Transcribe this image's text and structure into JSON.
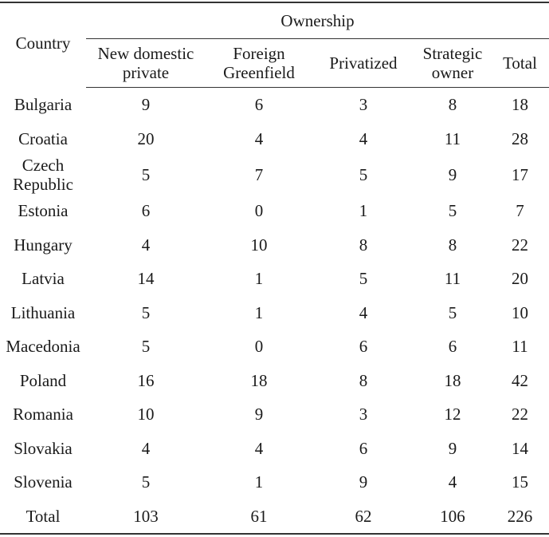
{
  "header": {
    "country": "Country",
    "group": "Ownership",
    "columns": [
      "New domestic\nprivate",
      "Foreign\nGreenfield",
      "Privatized",
      "Strategic\nowner",
      "Total"
    ]
  },
  "rows": [
    {
      "country": "Bulgaria",
      "values": [
        "9",
        "6",
        "3",
        "8",
        "18"
      ]
    },
    {
      "country": "Croatia",
      "values": [
        "20",
        "4",
        "4",
        "11",
        "28"
      ]
    },
    {
      "country": "Czech\nRepublic",
      "values": [
        "5",
        "7",
        "5",
        "9",
        "17"
      ]
    },
    {
      "country": "Estonia",
      "values": [
        "6",
        "0",
        "1",
        "5",
        "7"
      ]
    },
    {
      "country": "Hungary",
      "values": [
        "4",
        "10",
        "8",
        "8",
        "22"
      ]
    },
    {
      "country": "Latvia",
      "values": [
        "14",
        "1",
        "5",
        "11",
        "20"
      ]
    },
    {
      "country": "Lithuania",
      "values": [
        "5",
        "1",
        "4",
        "5",
        "10"
      ]
    },
    {
      "country": "Macedonia",
      "values": [
        "5",
        "0",
        "6",
        "6",
        "11"
      ]
    },
    {
      "country": "Poland",
      "values": [
        "16",
        "18",
        "8",
        "18",
        "42"
      ]
    },
    {
      "country": "Romania",
      "values": [
        "10",
        "9",
        "3",
        "12",
        "22"
      ]
    },
    {
      "country": "Slovakia",
      "values": [
        "4",
        "4",
        "6",
        "9",
        "14"
      ]
    },
    {
      "country": "Slovenia",
      "values": [
        "5",
        "1",
        "9",
        "4",
        "15"
      ]
    },
    {
      "country": "Total",
      "values": [
        "103",
        "61",
        "62",
        "106",
        "226"
      ]
    }
  ]
}
